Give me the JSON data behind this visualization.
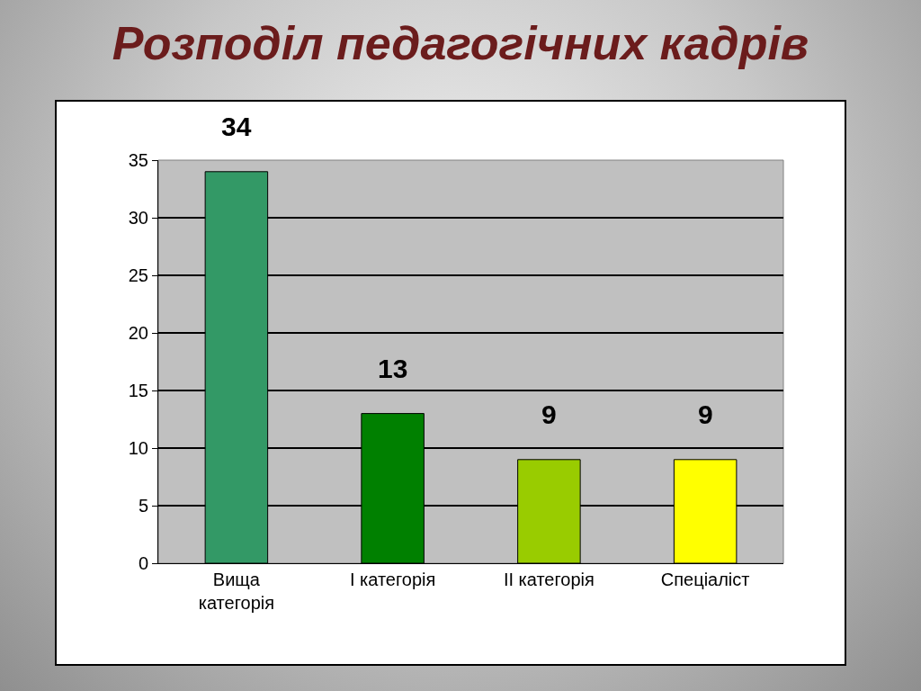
{
  "chart_data": {
    "type": "bar",
    "title": "Розподіл педагогічних кадрів",
    "categories": [
      "Вища\nкатегорія",
      "І категорія",
      "ІІ категорія",
      "Спеціаліст"
    ],
    "values": [
      34,
      13,
      9,
      9
    ],
    "colors": [
      "#339966",
      "#008000",
      "#99cc00",
      "#ffff00"
    ],
    "ylim": [
      0,
      35
    ],
    "yticks": [
      0,
      5,
      10,
      15,
      20,
      25,
      30,
      35
    ],
    "grid": "y",
    "data_labels": true
  }
}
